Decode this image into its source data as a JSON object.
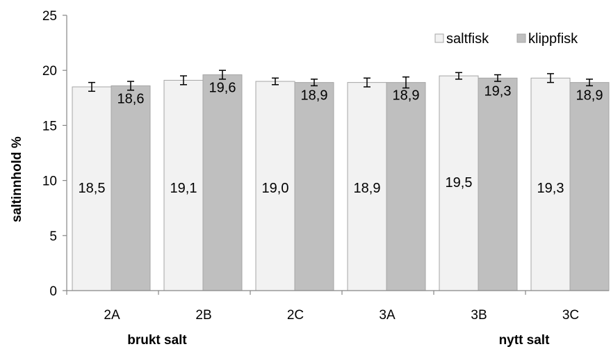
{
  "chart_data": {
    "type": "bar",
    "title": "",
    "xlabel": "",
    "ylabel": "saltinnhold %",
    "ylim": [
      0,
      25
    ],
    "yticks": [
      "0",
      "5",
      "10",
      "15",
      "20",
      "25"
    ],
    "categories": [
      "2A",
      "2B",
      "2C",
      "3A",
      "3B",
      "3C"
    ],
    "groups": [
      "brukt salt",
      "nytt salt"
    ],
    "series": [
      {
        "name": "saltfisk",
        "values": [
          18.5,
          19.1,
          19.0,
          18.9,
          19.5,
          19.3
        ],
        "labels": [
          "18,5",
          "19,1",
          "19,0",
          "18,9",
          "19,5",
          "19,3"
        ],
        "errors": [
          0.4,
          0.4,
          0.3,
          0.4,
          0.3,
          0.4
        ],
        "color": "#f2f2f2"
      },
      {
        "name": "klippfisk",
        "values": [
          18.6,
          19.6,
          18.9,
          18.9,
          19.3,
          18.9
        ],
        "labels": [
          "18,6",
          "19,6",
          "18,9",
          "18,9",
          "19,3",
          "18,9"
        ],
        "errors": [
          0.4,
          0.4,
          0.3,
          0.5,
          0.3,
          0.3
        ],
        "color": "#bfbfbf"
      }
    ],
    "grid": false,
    "legend": "top-right"
  }
}
